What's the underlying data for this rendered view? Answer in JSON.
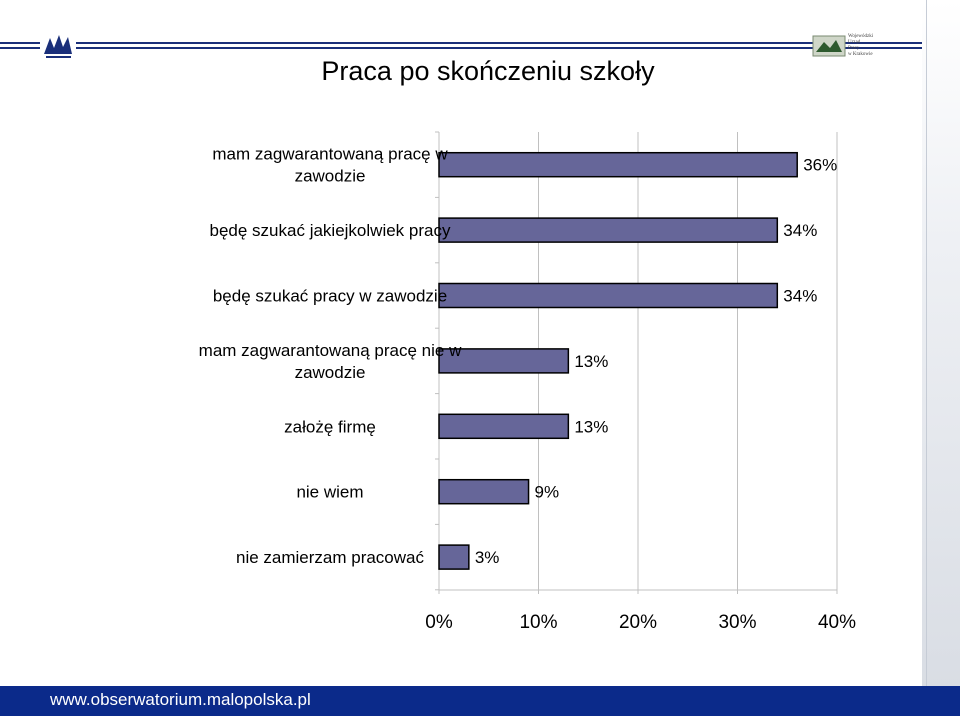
{
  "title": "Praca po skończeniu szkoły",
  "footer_text": "www.obserwatorium.malopolska.pl",
  "logo_right_text": "Wojewódzki\nUrząd\nPracy\nw Krakowie",
  "chart_data": {
    "type": "bar",
    "orientation": "horizontal",
    "categories": [
      [
        "mam zagwarantowaną pracę w",
        "zawodzie"
      ],
      [
        "będę szukać jakiejkolwiek pracy"
      ],
      [
        "będę szukać pracy w zawodzie"
      ],
      [
        "mam zagwarantowaną pracę nie w",
        "zawodzie"
      ],
      [
        "założę firmę"
      ],
      [
        "nie wiem"
      ],
      [
        "nie zamierzam pracować"
      ]
    ],
    "values": [
      36,
      34,
      34,
      13,
      13,
      9,
      3
    ],
    "value_labels": [
      "36%",
      "34%",
      "34%",
      "13%",
      "13%",
      "9%",
      "3%"
    ],
    "xlim": [
      0,
      40
    ],
    "xticks": [
      0,
      10,
      20,
      30,
      40
    ],
    "xtick_labels": [
      "0%",
      "10%",
      "20%",
      "30%",
      "40%"
    ],
    "grid": true,
    "colors": {
      "bar": "#666699",
      "bar_stroke": "#000000",
      "grid": "#c0c0c0",
      "footer": "#0b2a8a",
      "topline": "#1a2f7a"
    }
  }
}
